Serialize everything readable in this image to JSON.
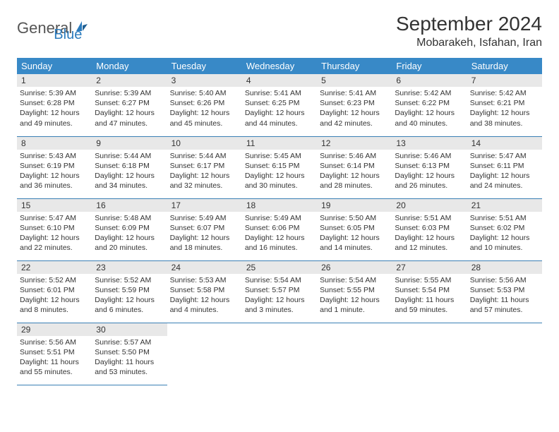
{
  "logo": {
    "text1": "General",
    "text2": "Blue"
  },
  "title": "September 2024",
  "location": "Mobarakeh, Isfahan, Iran",
  "colors": {
    "header_bg": "#3889c7",
    "header_text": "#ffffff",
    "daynum_bg": "#e8e8e8",
    "border": "#3a7fb5",
    "logo_blue": "#2b7bbd"
  },
  "weekdays": [
    "Sunday",
    "Monday",
    "Tuesday",
    "Wednesday",
    "Thursday",
    "Friday",
    "Saturday"
  ],
  "days": [
    {
      "n": "1",
      "sunrise": "5:39 AM",
      "sunset": "6:28 PM",
      "daylight": "12 hours and 49 minutes."
    },
    {
      "n": "2",
      "sunrise": "5:39 AM",
      "sunset": "6:27 PM",
      "daylight": "12 hours and 47 minutes."
    },
    {
      "n": "3",
      "sunrise": "5:40 AM",
      "sunset": "6:26 PM",
      "daylight": "12 hours and 45 minutes."
    },
    {
      "n": "4",
      "sunrise": "5:41 AM",
      "sunset": "6:25 PM",
      "daylight": "12 hours and 44 minutes."
    },
    {
      "n": "5",
      "sunrise": "5:41 AM",
      "sunset": "6:23 PM",
      "daylight": "12 hours and 42 minutes."
    },
    {
      "n": "6",
      "sunrise": "5:42 AM",
      "sunset": "6:22 PM",
      "daylight": "12 hours and 40 minutes."
    },
    {
      "n": "7",
      "sunrise": "5:42 AM",
      "sunset": "6:21 PM",
      "daylight": "12 hours and 38 minutes."
    },
    {
      "n": "8",
      "sunrise": "5:43 AM",
      "sunset": "6:19 PM",
      "daylight": "12 hours and 36 minutes."
    },
    {
      "n": "9",
      "sunrise": "5:44 AM",
      "sunset": "6:18 PM",
      "daylight": "12 hours and 34 minutes."
    },
    {
      "n": "10",
      "sunrise": "5:44 AM",
      "sunset": "6:17 PM",
      "daylight": "12 hours and 32 minutes."
    },
    {
      "n": "11",
      "sunrise": "5:45 AM",
      "sunset": "6:15 PM",
      "daylight": "12 hours and 30 minutes."
    },
    {
      "n": "12",
      "sunrise": "5:46 AM",
      "sunset": "6:14 PM",
      "daylight": "12 hours and 28 minutes."
    },
    {
      "n": "13",
      "sunrise": "5:46 AM",
      "sunset": "6:13 PM",
      "daylight": "12 hours and 26 minutes."
    },
    {
      "n": "14",
      "sunrise": "5:47 AM",
      "sunset": "6:11 PM",
      "daylight": "12 hours and 24 minutes."
    },
    {
      "n": "15",
      "sunrise": "5:47 AM",
      "sunset": "6:10 PM",
      "daylight": "12 hours and 22 minutes."
    },
    {
      "n": "16",
      "sunrise": "5:48 AM",
      "sunset": "6:09 PM",
      "daylight": "12 hours and 20 minutes."
    },
    {
      "n": "17",
      "sunrise": "5:49 AM",
      "sunset": "6:07 PM",
      "daylight": "12 hours and 18 minutes."
    },
    {
      "n": "18",
      "sunrise": "5:49 AM",
      "sunset": "6:06 PM",
      "daylight": "12 hours and 16 minutes."
    },
    {
      "n": "19",
      "sunrise": "5:50 AM",
      "sunset": "6:05 PM",
      "daylight": "12 hours and 14 minutes."
    },
    {
      "n": "20",
      "sunrise": "5:51 AM",
      "sunset": "6:03 PM",
      "daylight": "12 hours and 12 minutes."
    },
    {
      "n": "21",
      "sunrise": "5:51 AM",
      "sunset": "6:02 PM",
      "daylight": "12 hours and 10 minutes."
    },
    {
      "n": "22",
      "sunrise": "5:52 AM",
      "sunset": "6:01 PM",
      "daylight": "12 hours and 8 minutes."
    },
    {
      "n": "23",
      "sunrise": "5:52 AM",
      "sunset": "5:59 PM",
      "daylight": "12 hours and 6 minutes."
    },
    {
      "n": "24",
      "sunrise": "5:53 AM",
      "sunset": "5:58 PM",
      "daylight": "12 hours and 4 minutes."
    },
    {
      "n": "25",
      "sunrise": "5:54 AM",
      "sunset": "5:57 PM",
      "daylight": "12 hours and 3 minutes."
    },
    {
      "n": "26",
      "sunrise": "5:54 AM",
      "sunset": "5:55 PM",
      "daylight": "12 hours and 1 minute."
    },
    {
      "n": "27",
      "sunrise": "5:55 AM",
      "sunset": "5:54 PM",
      "daylight": "11 hours and 59 minutes."
    },
    {
      "n": "28",
      "sunrise": "5:56 AM",
      "sunset": "5:53 PM",
      "daylight": "11 hours and 57 minutes."
    },
    {
      "n": "29",
      "sunrise": "5:56 AM",
      "sunset": "5:51 PM",
      "daylight": "11 hours and 55 minutes."
    },
    {
      "n": "30",
      "sunrise": "5:57 AM",
      "sunset": "5:50 PM",
      "daylight": "11 hours and 53 minutes."
    }
  ],
  "labels": {
    "sunrise": "Sunrise:",
    "sunset": "Sunset:",
    "daylight": "Daylight:"
  }
}
